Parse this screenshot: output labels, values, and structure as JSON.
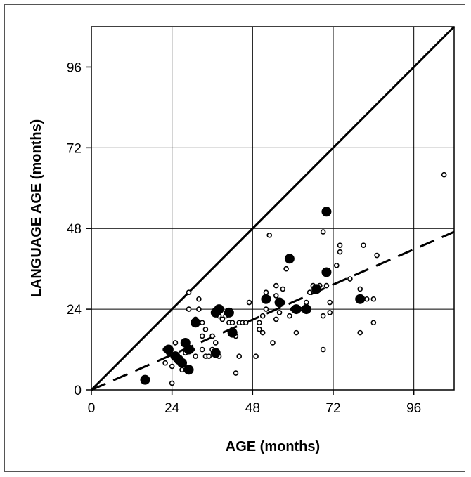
{
  "chart_data": {
    "type": "scatter",
    "title": "",
    "xlabel": "AGE (months)",
    "ylabel": "LANGUAGE AGE (months)",
    "xlim": [
      0,
      108
    ],
    "ylim": [
      0,
      108
    ],
    "x_ticks": [
      "0",
      "24",
      "48",
      "72",
      "96"
    ],
    "y_ticks": [
      "0",
      "24",
      "48",
      "72",
      "96"
    ],
    "x_tick_values": [
      0,
      24,
      48,
      72,
      96
    ],
    "y_tick_values": [
      0,
      24,
      48,
      72,
      96
    ],
    "grid": true,
    "reference_line": {
      "style": "solid",
      "points": [
        [
          0,
          0
        ],
        [
          108,
          108
        ]
      ]
    },
    "trend_line": {
      "style": "dashed",
      "points": [
        [
          0,
          0
        ],
        [
          108,
          47
        ]
      ]
    },
    "series": [
      {
        "marker": "open-circle",
        "points": [
          [
            22,
            12
          ],
          [
            22,
            8
          ],
          [
            23,
            11
          ],
          [
            24,
            2
          ],
          [
            24,
            7
          ],
          [
            25,
            14
          ],
          [
            26,
            9
          ],
          [
            27,
            6
          ],
          [
            28,
            11
          ],
          [
            28,
            14
          ],
          [
            29,
            29
          ],
          [
            29,
            24
          ],
          [
            30,
            12
          ],
          [
            31,
            10
          ],
          [
            31,
            21
          ],
          [
            32,
            20
          ],
          [
            32,
            27
          ],
          [
            32,
            24
          ],
          [
            33,
            20
          ],
          [
            33,
            16
          ],
          [
            33,
            12
          ],
          [
            34,
            10
          ],
          [
            34,
            18
          ],
          [
            35,
            10
          ],
          [
            36,
            12
          ],
          [
            36,
            16
          ],
          [
            37,
            14
          ],
          [
            38,
            10
          ],
          [
            38,
            22
          ],
          [
            39,
            21
          ],
          [
            40,
            22
          ],
          [
            41,
            20
          ],
          [
            42,
            18
          ],
          [
            42,
            20
          ],
          [
            43,
            5
          ],
          [
            43,
            16
          ],
          [
            44,
            10
          ],
          [
            44,
            20
          ],
          [
            45,
            20
          ],
          [
            46,
            20
          ],
          [
            47,
            26
          ],
          [
            49,
            10
          ],
          [
            50,
            18
          ],
          [
            50,
            20
          ],
          [
            51,
            17
          ],
          [
            51,
            22
          ],
          [
            52,
            29
          ],
          [
            52,
            24
          ],
          [
            53,
            46
          ],
          [
            54,
            14
          ],
          [
            55,
            31
          ],
          [
            55,
            28
          ],
          [
            55,
            21
          ],
          [
            56,
            23
          ],
          [
            57,
            26
          ],
          [
            57,
            30
          ],
          [
            58,
            36
          ],
          [
            59,
            22
          ],
          [
            60,
            24
          ],
          [
            61,
            17
          ],
          [
            62,
            24
          ],
          [
            63,
            24
          ],
          [
            64,
            26
          ],
          [
            65,
            29
          ],
          [
            66,
            31
          ],
          [
            68,
            31
          ],
          [
            69,
            47
          ],
          [
            69,
            12
          ],
          [
            69,
            22
          ],
          [
            70,
            31
          ],
          [
            71,
            26
          ],
          [
            71,
            23
          ],
          [
            73,
            37
          ],
          [
            74,
            43
          ],
          [
            74,
            41
          ],
          [
            77,
            33
          ],
          [
            80,
            17
          ],
          [
            80,
            30
          ],
          [
            81,
            43
          ],
          [
            82,
            27
          ],
          [
            84,
            27
          ],
          [
            84,
            20
          ],
          [
            85,
            40
          ],
          [
            105,
            64
          ]
        ]
      },
      {
        "marker": "filled-circle",
        "points": [
          [
            16,
            3
          ],
          [
            23,
            12
          ],
          [
            25,
            10
          ],
          [
            26,
            9
          ],
          [
            27,
            8
          ],
          [
            28,
            14
          ],
          [
            29,
            6
          ],
          [
            29,
            12
          ],
          [
            31,
            20
          ],
          [
            37,
            23
          ],
          [
            37,
            11
          ],
          [
            38,
            24
          ],
          [
            41,
            23
          ],
          [
            42,
            17
          ],
          [
            52,
            27
          ],
          [
            56,
            26
          ],
          [
            59,
            39
          ],
          [
            61,
            24
          ],
          [
            64,
            24
          ],
          [
            67,
            30
          ],
          [
            70,
            35
          ],
          [
            70,
            53
          ],
          [
            80,
            27
          ]
        ]
      }
    ]
  }
}
